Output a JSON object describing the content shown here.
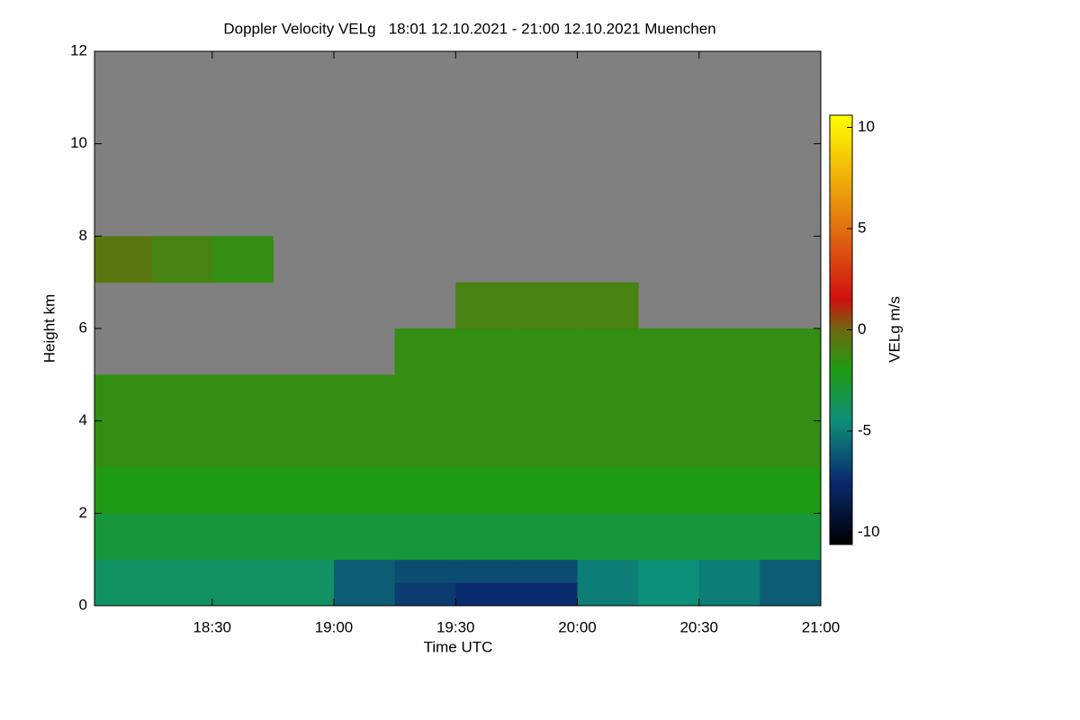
{
  "chart_data": {
    "type": "heatmap",
    "title": "Doppler Velocity VELg   18:01 12.10.2021 - 21:00 12.10.2021 Muenchen",
    "x_label": "Time UTC",
    "y_label": "Height km",
    "colorbar_label": "VELg m/s",
    "x_bins": [
      18.0167,
      18.25,
      18.5,
      18.75,
      19.0,
      19.25,
      19.5,
      19.75,
      20.0,
      20.25,
      20.5,
      20.75,
      21.0
    ],
    "y_bins": [
      0,
      0.5,
      1,
      2,
      3,
      4,
      5,
      6,
      7,
      8,
      12
    ],
    "values": [
      [
        -4,
        -4,
        -4,
        -4,
        -6,
        -7,
        -7.5,
        -7.5,
        -5,
        -4.5,
        -5,
        -6
      ],
      [
        -4,
        -4,
        -4,
        -4,
        -6,
        -6.5,
        -6.5,
        -6.5,
        -5,
        -4.5,
        -5,
        -6
      ],
      [
        -3,
        -3,
        -3,
        -3,
        -3,
        -3,
        -3,
        -3,
        -3,
        -3,
        -3,
        -3
      ],
      [
        -2,
        -2,
        -2,
        -2,
        -2,
        -2,
        -2,
        -2,
        -2,
        -2,
        -2,
        -2
      ],
      [
        -1.5,
        -1.5,
        -1.5,
        -1.5,
        -1.5,
        -1.5,
        -1.5,
        -1.5,
        -1.5,
        -1.5,
        -1.5,
        -1.5
      ],
      [
        -1.5,
        -1.5,
        -1.5,
        -1.5,
        -1.5,
        -1.5,
        -1.5,
        -1.5,
        -1.5,
        -1.5,
        -1.5,
        -1.5
      ],
      [
        null,
        null,
        null,
        null,
        null,
        -1.5,
        -1.5,
        -1.5,
        -1.5,
        -1.5,
        -1.5,
        -1.5
      ],
      [
        null,
        null,
        null,
        null,
        null,
        null,
        -1,
        -1,
        -1,
        null,
        null,
        null
      ],
      [
        -0.5,
        -1,
        -1.5,
        null,
        null,
        null,
        null,
        null,
        null,
        null,
        null,
        null
      ],
      [
        null,
        null,
        null,
        null,
        null,
        null,
        null,
        null,
        null,
        null,
        null,
        null
      ]
    ],
    "xlim": [
      18.0167,
      21.0
    ],
    "ylim": [
      0,
      12
    ],
    "xticks": [
      {
        "value": 18.5,
        "label": "18:30"
      },
      {
        "value": 19.0,
        "label": "19:00"
      },
      {
        "value": 19.5,
        "label": "19:30"
      },
      {
        "value": 20.0,
        "label": "20:00"
      },
      {
        "value": 20.5,
        "label": "20:30"
      },
      {
        "value": 21.0,
        "label": "21:00"
      }
    ],
    "yticks": [
      0,
      2,
      4,
      6,
      8,
      10,
      12
    ],
    "clim": [
      -10.6,
      10.6
    ],
    "cticks": [
      -10,
      -5,
      0,
      5,
      10
    ],
    "missing_color": "#808080",
    "colormap": [
      {
        "value": -10.6,
        "color": "#000000"
      },
      {
        "value": -7.5,
        "color": "#0a2a6e"
      },
      {
        "value": -4.5,
        "color": "#0e8f78"
      },
      {
        "value": -2,
        "color": "#1f9a14"
      },
      {
        "value": 0,
        "color": "#6e6a10"
      },
      {
        "value": 1.5,
        "color": "#d01010"
      },
      {
        "value": 5,
        "color": "#e07010"
      },
      {
        "value": 10.6,
        "color": "#ffff00"
      }
    ]
  }
}
